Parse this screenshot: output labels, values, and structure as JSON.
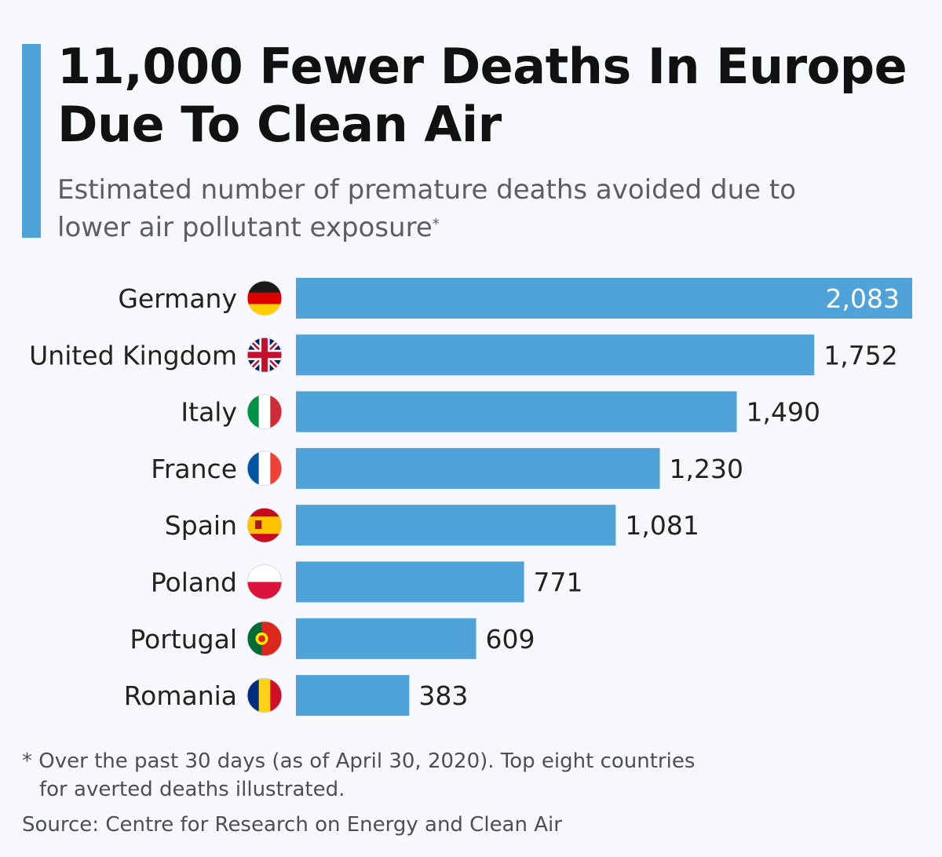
{
  "header": {
    "title_line1": "11,000 Fewer Deaths In Europe",
    "title_line2": "Due To Clean Air",
    "subtitle_line1": "Estimated number of premature deaths avoided due to",
    "subtitle_line2": "lower air pollutant exposure",
    "subtitle_mark": "*"
  },
  "chart_data": {
    "type": "bar",
    "orientation": "horizontal",
    "title": "11,000 Fewer Deaths In Europe Due To Clean Air",
    "subtitle": "Estimated number of premature deaths avoided due to lower air pollutant exposure*",
    "categories": [
      "Germany",
      "United Kingdom",
      "Italy",
      "France",
      "Spain",
      "Poland",
      "Portugal",
      "Romania"
    ],
    "values": [
      2083,
      1752,
      1490,
      1230,
      1081,
      771,
      609,
      383
    ],
    "value_labels": [
      "2,083",
      "1,752",
      "1,490",
      "1,230",
      "1,081",
      "771",
      "609",
      "383"
    ],
    "flag_icons": [
      "germany-flag-icon",
      "united-kingdom-flag-icon",
      "italy-flag-icon",
      "france-flag-icon",
      "spain-flag-icon",
      "poland-flag-icon",
      "portugal-flag-icon",
      "romania-flag-icon"
    ],
    "xlim": [
      0,
      2083
    ],
    "bar_color": "#4fa3d9",
    "grid": false,
    "legend": "none"
  },
  "footer": {
    "footnote_line1": "* Over the past 30 days (as of April 30, 2020). Top eight countries",
    "footnote_line2": "for averted deaths illustrated.",
    "source": "Source: Centre for Research on Energy and Clean Air"
  },
  "colors": {
    "accent": "#4fa3d9",
    "background": "#f6f8fb",
    "title": "#111111",
    "subtitle": "#5b5e63"
  }
}
